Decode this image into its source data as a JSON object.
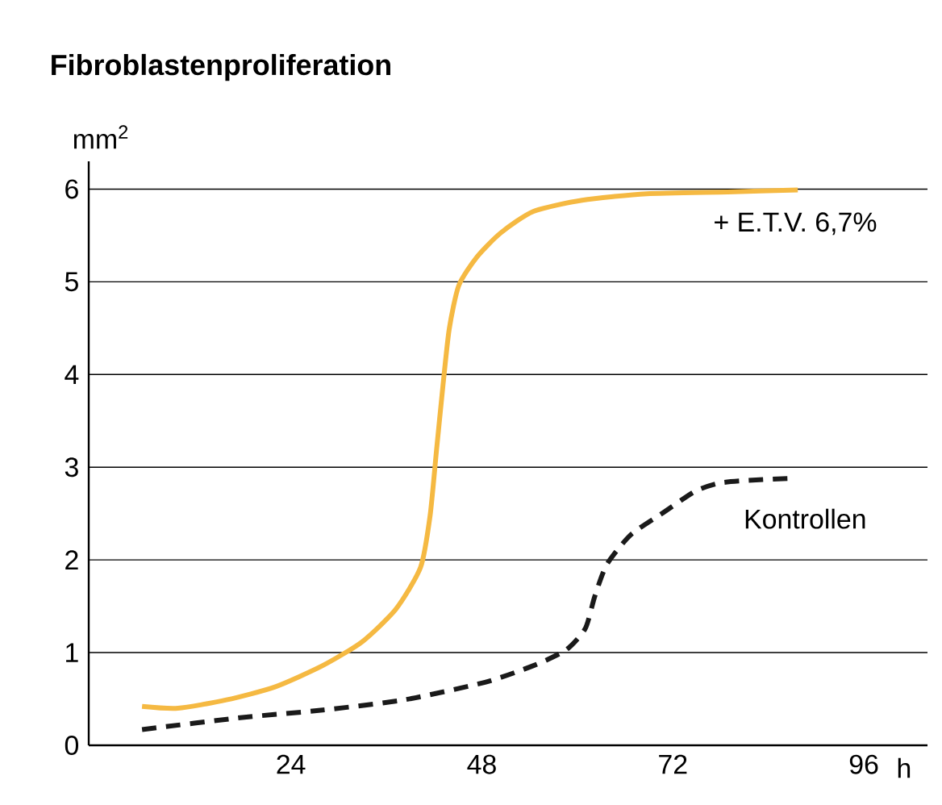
{
  "chart_data": {
    "type": "line",
    "title": "Fibroblastenproliferation",
    "xlabel": "h",
    "ylabel": "mm$^{2}$",
    "xlim": [
      -1.4,
      104
    ],
    "xticks": [
      24,
      48,
      72,
      96
    ],
    "ylim": [
      0,
      6.3
    ],
    "yticks": [
      0,
      1,
      2,
      3,
      4,
      5,
      6
    ],
    "grid": "y",
    "series": [
      {
        "name": "+ E.T.V. 6,7%",
        "color": "#f5b942",
        "line_style": "solid",
        "x": [
          5.3,
          9.8,
          15.9,
          22,
          28,
          33,
          37.2,
          40.3,
          41.5,
          42.3,
          43.1,
          43.9,
          45.1,
          47.4,
          50.4,
          54.5,
          60.6,
          68.7,
          78.9,
          87.7
        ],
        "values": [
          0.42,
          0.4,
          0.49,
          0.63,
          0.86,
          1.12,
          1.47,
          1.92,
          2.48,
          3.18,
          3.87,
          4.49,
          4.96,
          5.27,
          5.53,
          5.76,
          5.88,
          5.95,
          5.97,
          5.99
        ]
      },
      {
        "name": "Kontrollen",
        "color": "#1a1a1a",
        "line_style": "dashed",
        "x": [
          5.3,
          17.9,
          28,
          38.2,
          48.4,
          54.5,
          58.6,
          61,
          62.2,
          63.7,
          66.7,
          70.8,
          74.8,
          77.9,
          82,
          87
        ],
        "values": [
          0.17,
          0.3,
          0.38,
          0.49,
          0.68,
          0.86,
          1.03,
          1.26,
          1.61,
          1.95,
          2.27,
          2.51,
          2.74,
          2.83,
          2.86,
          2.88
        ]
      }
    ]
  }
}
